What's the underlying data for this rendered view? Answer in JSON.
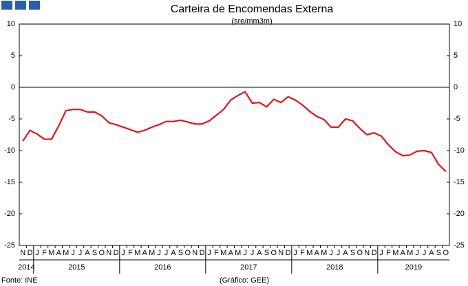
{
  "chart_data": {
    "type": "line",
    "title": "Carteira de Encomendas Externa",
    "subtitle": "(sre/mm3m)",
    "source": "Fonte: INE",
    "credit": "(Gráfico: GEE)",
    "categories": [
      "N",
      "D",
      "J",
      "F",
      "M",
      "A",
      "M",
      "J",
      "J",
      "A",
      "S",
      "O",
      "N",
      "D",
      "J",
      "F",
      "M",
      "A",
      "M",
      "J",
      "J",
      "A",
      "S",
      "O",
      "N",
      "D",
      "J",
      "F",
      "M",
      "A",
      "M",
      "J",
      "J",
      "A",
      "S",
      "O",
      "N",
      "D",
      "J",
      "F",
      "M",
      "A",
      "M",
      "J",
      "J",
      "A",
      "S",
      "O",
      "N",
      "D",
      "J",
      "F",
      "M",
      "A",
      "M",
      "J",
      "J",
      "A",
      "S",
      "O"
    ],
    "year_groups": [
      "2014",
      "2015",
      "2016",
      "2017",
      "2018",
      "2019"
    ],
    "series": [
      {
        "color": "#e3121b",
        "values": [
          -8.5,
          -6.8,
          -7.4,
          -8.2,
          -8.2,
          -6.1,
          -3.7,
          -3.5,
          -3.5,
          -3.9,
          -3.9,
          -4.5,
          -5.6,
          -5.9,
          -6.3,
          -6.7,
          -7.1,
          -6.8,
          -6.3,
          -5.9,
          -5.4,
          -5.4,
          -5.2,
          -5.5,
          -5.8,
          -5.8,
          -5.3,
          -4.4,
          -3.5,
          -2.0,
          -1.3,
          -0.7,
          -2.5,
          -2.4,
          -3.1,
          -1.9,
          -2.4,
          -1.5,
          -2.0,
          -2.8,
          -3.8,
          -4.6,
          -5.1,
          -6.3,
          -6.3,
          -5.0,
          -5.3,
          -6.5,
          -7.5,
          -7.2,
          -7.7,
          -9.1,
          -10.2,
          -10.8,
          -10.7,
          -10.1,
          -10.0,
          -10.3,
          -12.2,
          -13.3
        ]
      }
    ],
    "ylim": [
      -25,
      10
    ],
    "yticks": [
      -25,
      -20,
      -15,
      -10,
      -5,
      0,
      5,
      10
    ]
  }
}
